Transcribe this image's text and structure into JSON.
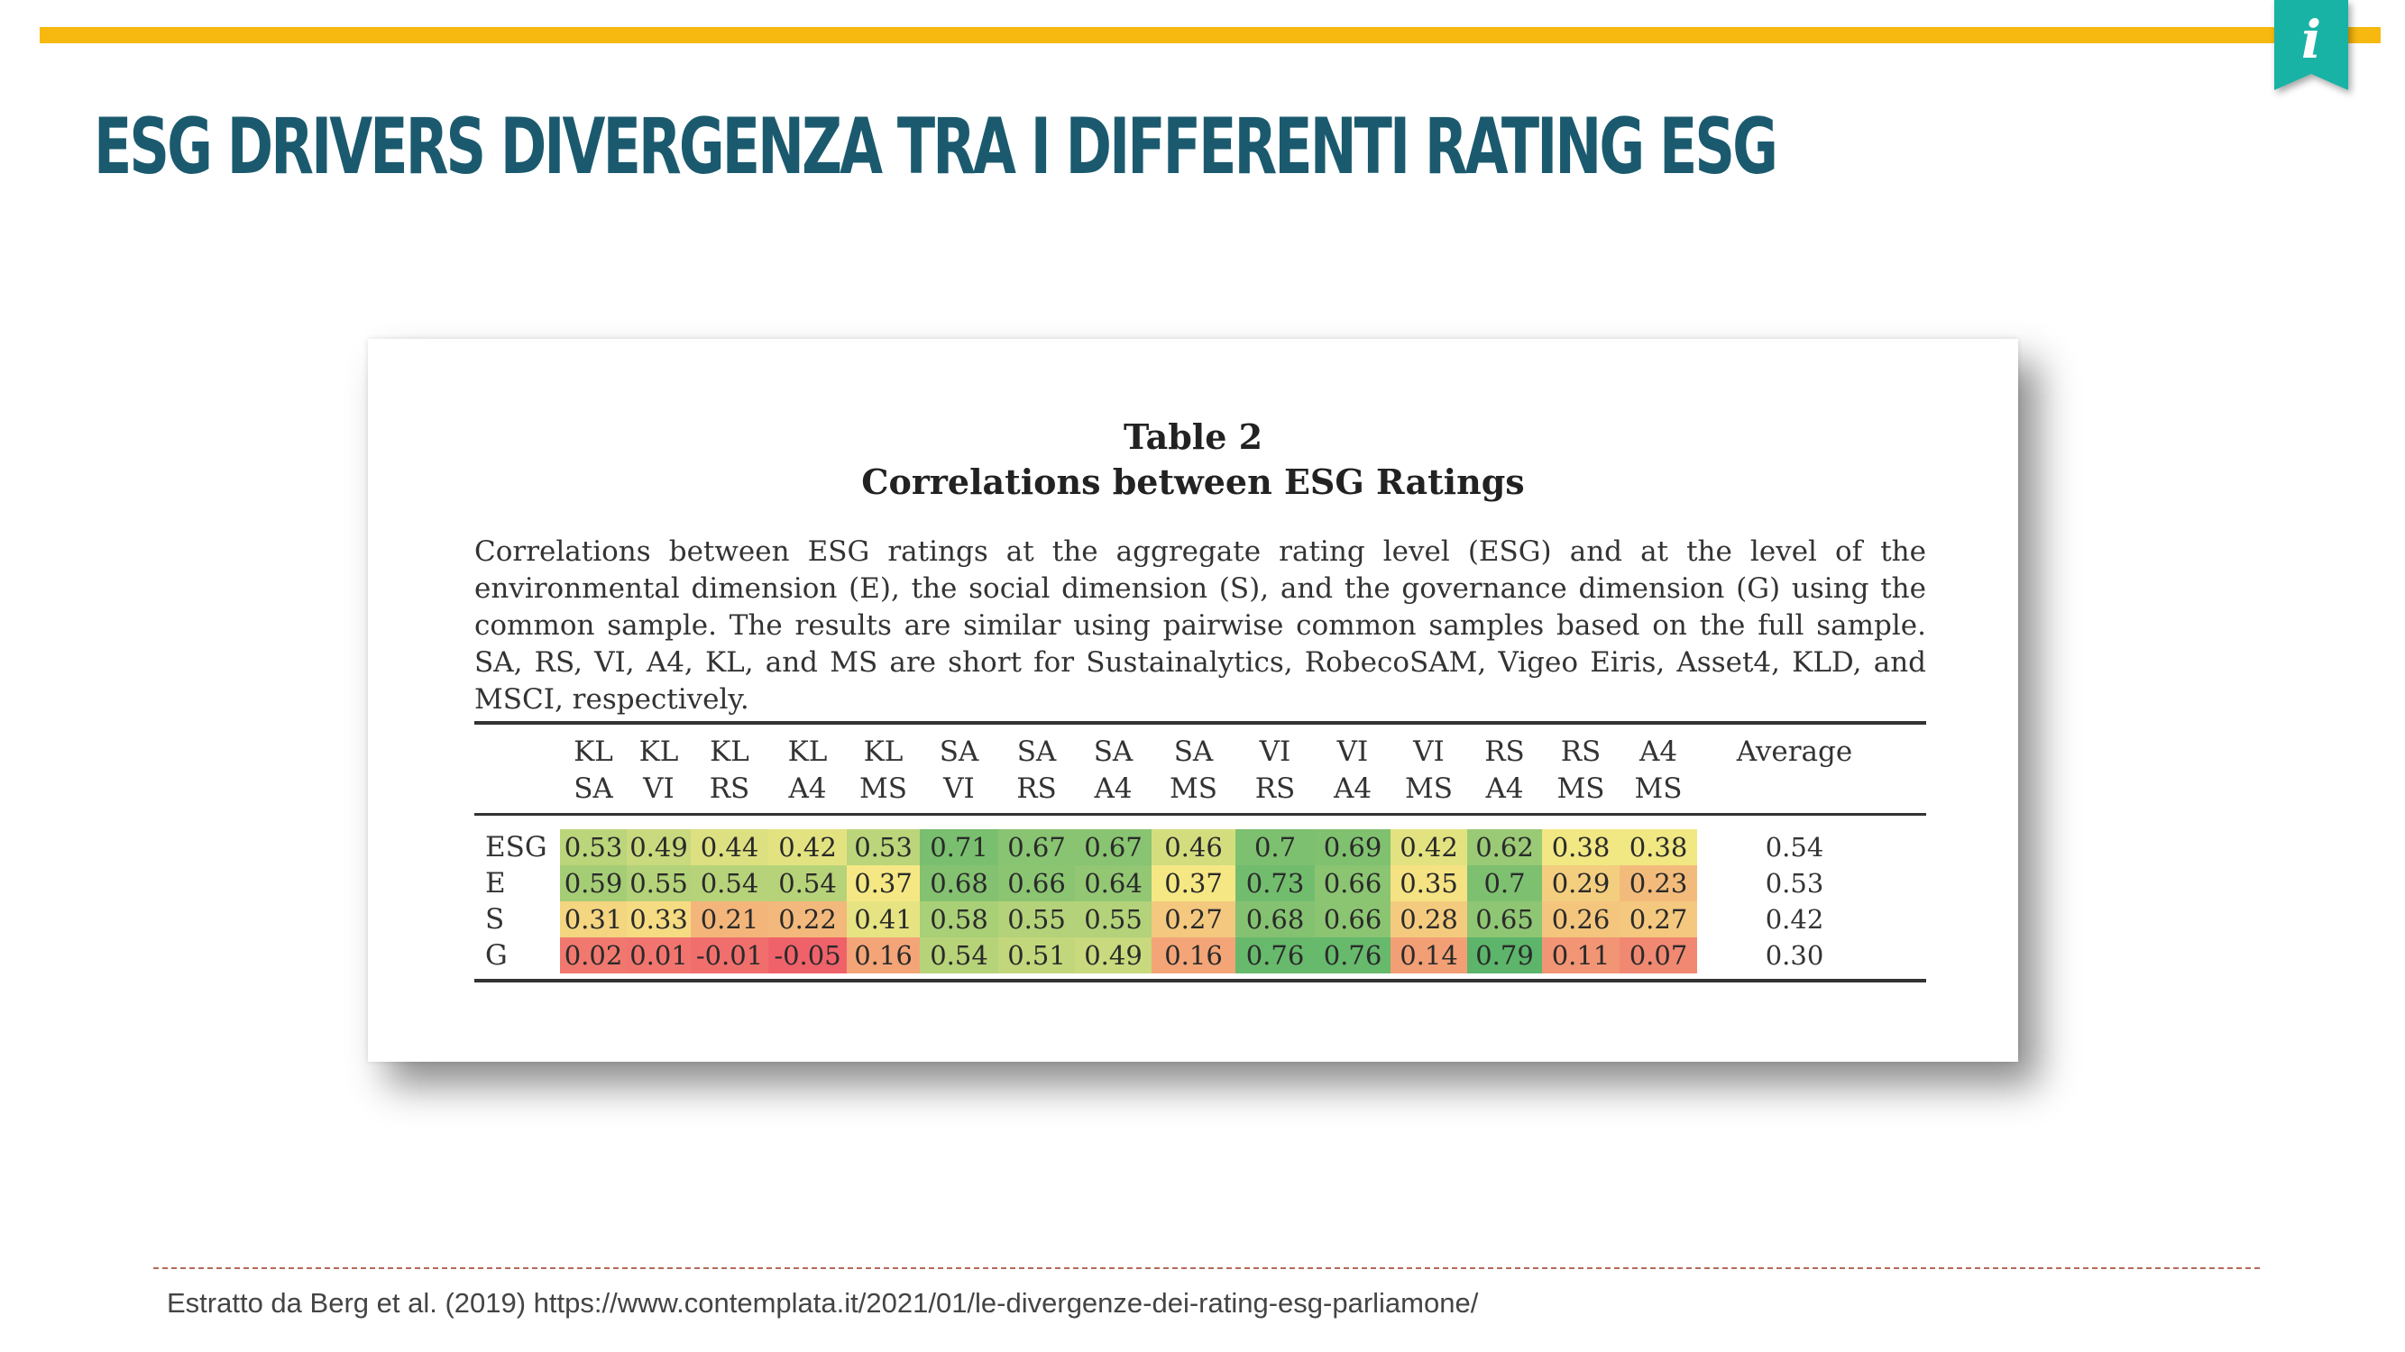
{
  "slide": {
    "title": "ESG drivers divergenza tra i differenti rating ESG",
    "source": "Estratto da Berg et al. (2019) https://www.contemplata.it/2021/01/le-divergenze-dei-rating-esg-parliamone/",
    "accent_color": "#f7b80f",
    "title_color": "#1b5a6e",
    "badge_color": "#19b3a5",
    "badge_icon": "info-icon",
    "badge_glyph": "i"
  },
  "table": {
    "caption": "Table 2",
    "subcaption": "Correlations between ESG Ratings",
    "description": "Correlations between ESG ratings at the aggregate rating level (ESG) and at the level of the environmental dimension (E), the social dimension (S), and the governance dimension (G) using the common sample. The results are similar using pairwise common samples based on the full sample. SA, RS, VI, A4, KL, and MS are short for Sustainalytics, RobecoSAM, Vigeo Eiris, Asset4, KLD, and MSCI, respectively.",
    "columns": [
      {
        "top": "KL",
        "bottom": "SA"
      },
      {
        "top": "KL",
        "bottom": "VI"
      },
      {
        "top": "KL",
        "bottom": "RS"
      },
      {
        "top": "KL",
        "bottom": "A4"
      },
      {
        "top": "KL",
        "bottom": "MS"
      },
      {
        "top": "SA",
        "bottom": "VI"
      },
      {
        "top": "SA",
        "bottom": "RS"
      },
      {
        "top": "SA",
        "bottom": "A4"
      },
      {
        "top": "SA",
        "bottom": "MS"
      },
      {
        "top": "VI",
        "bottom": "RS"
      },
      {
        "top": "VI",
        "bottom": "A4"
      },
      {
        "top": "VI",
        "bottom": "MS"
      },
      {
        "top": "RS",
        "bottom": "A4"
      },
      {
        "top": "RS",
        "bottom": "MS"
      },
      {
        "top": "A4",
        "bottom": "MS"
      }
    ],
    "average_header": "Average",
    "rows": [
      {
        "label": "ESG",
        "values": [
          "0.53",
          "0.49",
          "0.44",
          "0.42",
          "0.53",
          "0.71",
          "0.67",
          "0.67",
          "0.46",
          "0.7",
          "0.69",
          "0.42",
          "0.62",
          "0.38",
          "0.38"
        ],
        "average": "0.54"
      },
      {
        "label": "E",
        "values": [
          "0.59",
          "0.55",
          "0.54",
          "0.54",
          "0.37",
          "0.68",
          "0.66",
          "0.64",
          "0.37",
          "0.73",
          "0.66",
          "0.35",
          "0.7",
          "0.29",
          "0.23"
        ],
        "average": "0.53"
      },
      {
        "label": "S",
        "values": [
          "0.31",
          "0.33",
          "0.21",
          "0.22",
          "0.41",
          "0.58",
          "0.55",
          "0.55",
          "0.27",
          "0.68",
          "0.66",
          "0.28",
          "0.65",
          "0.26",
          "0.27"
        ],
        "average": "0.42"
      },
      {
        "label": "G",
        "values": [
          "0.02",
          "0.01",
          "-0.01",
          "-0.05",
          "0.16",
          "0.54",
          "0.51",
          "0.49",
          "0.16",
          "0.76",
          "0.76",
          "0.14",
          "0.79",
          "0.11",
          "0.07"
        ],
        "average": "0.30"
      }
    ],
    "heatmap_colors": {
      "low": "#f0626a",
      "mid": "#f5e884",
      "high": "#5cb56a"
    }
  }
}
